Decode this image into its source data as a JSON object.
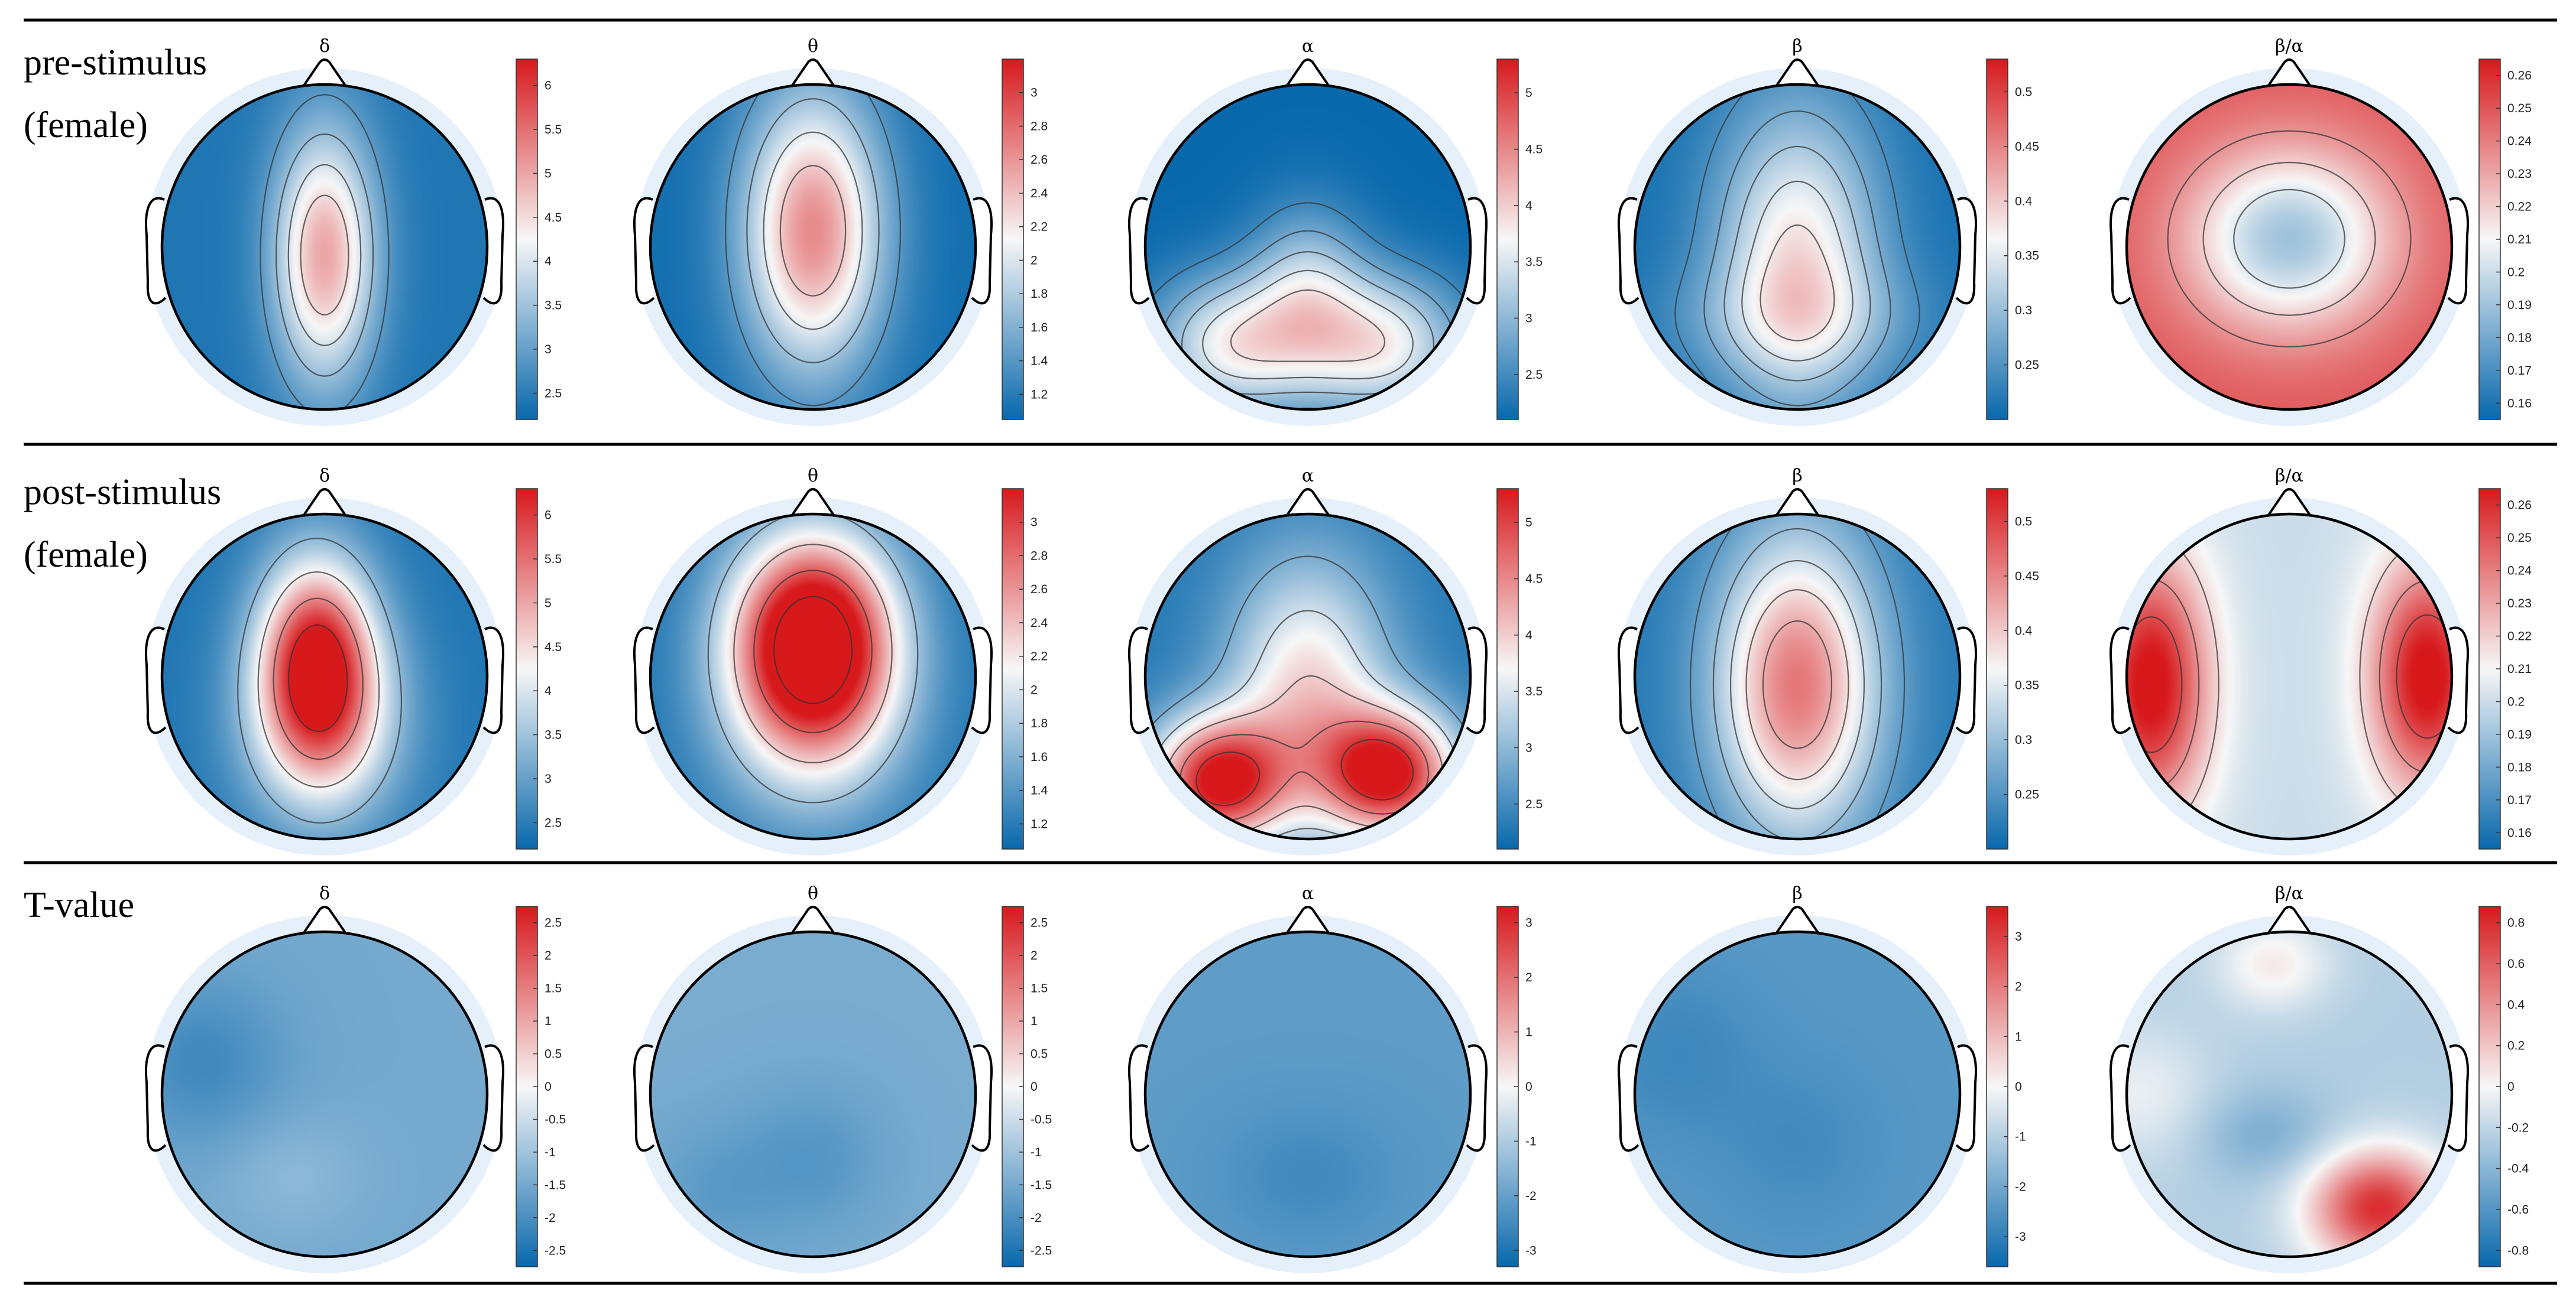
{
  "chart_data": {
    "type": "heatmap",
    "title": "",
    "band_labels": [
      "δ",
      "θ",
      "α",
      "β",
      "β/α"
    ],
    "colormap": {
      "low": "#0868ac",
      "mid": "#f7f7f7",
      "high": "#d7191c"
    },
    "rows": [
      {
        "label": "pre-stimulus",
        "sublabel": "(female)",
        "maps": [
          {
            "band": "δ",
            "range": [
              2.2,
              6.3
            ],
            "ticks": [
              "6",
              "5.5",
              "5",
              "4.5",
              "4",
              "3.5",
              "3",
              "2.5"
            ],
            "tick_values": [
              6,
              5.5,
              5,
              4.5,
              4,
              3.5,
              3,
              2.5
            ],
            "base": 2.4,
            "blobs": [
              {
                "x": 0,
                "y": 0.05,
                "sx": 0.22,
                "sy": 0.55,
                "a": 2.6
              }
            ],
            "contours": 4
          },
          {
            "band": "θ",
            "range": [
              1.05,
              3.2
            ],
            "ticks": [
              "3",
              "2.8",
              "2.6",
              "2.4",
              "2.2",
              "2",
              "1.8",
              "1.6",
              "1.4",
              "1.2"
            ],
            "tick_values": [
              3,
              2.8,
              2.6,
              2.4,
              2.2,
              2,
              1.8,
              1.6,
              1.4,
              1.2
            ],
            "base": 1.1,
            "blobs": [
              {
                "x": 0,
                "y": -0.1,
                "sx": 0.3,
                "sy": 0.6,
                "a": 1.55
              }
            ],
            "contours": 4
          },
          {
            "band": "α",
            "range": [
              2.1,
              5.3
            ],
            "ticks": [
              "5",
              "4.5",
              "4",
              "3.5",
              "3",
              "2.5"
            ],
            "tick_values": [
              5,
              4.5,
              4,
              3.5,
              3,
              2.5
            ],
            "base": 2.1,
            "blobs": [
              {
                "x": -0.45,
                "y": 0.6,
                "sx": 0.35,
                "sy": 0.3,
                "a": 1.6
              },
              {
                "x": 0.45,
                "y": 0.6,
                "sx": 0.35,
                "sy": 0.3,
                "a": 1.6
              },
              {
                "x": 0,
                "y": 0.25,
                "sx": 0.25,
                "sy": 0.35,
                "a": 1.0
              }
            ],
            "contours": 5
          },
          {
            "band": "β",
            "range": [
              0.2,
              0.53
            ],
            "ticks": [
              "0.5",
              "0.45",
              "0.4",
              "0.35",
              "0.3",
              "0.25"
            ],
            "tick_values": [
              0.5,
              0.45,
              0.4,
              0.35,
              0.3,
              0.25
            ],
            "base": 0.21,
            "blobs": [
              {
                "x": 0,
                "y": 0.05,
                "sx": 0.35,
                "sy": 0.65,
                "a": 0.17
              },
              {
                "x": 0,
                "y": 0.45,
                "sx": 0.55,
                "sy": 0.25,
                "a": 0.05
              }
            ],
            "contours": 5
          },
          {
            "band": "β/α",
            "range": [
              0.155,
              0.265
            ],
            "ticks": [
              "0.26",
              "0.25",
              "0.24",
              "0.23",
              "0.22",
              "0.21",
              "0.2",
              "0.19",
              "0.18",
              "0.17",
              "0.16"
            ],
            "tick_values": [
              0.26,
              0.25,
              0.24,
              0.23,
              0.22,
              0.21,
              0.2,
              0.19,
              0.18,
              0.17,
              0.16
            ],
            "base": 0.25,
            "blobs": [
              {
                "x": 0,
                "y": -0.05,
                "sx": 0.45,
                "sy": 0.4,
                "a": -0.06
              }
            ],
            "contours": 3
          }
        ]
      },
      {
        "label": "post-stimulus",
        "sublabel": "(female)",
        "maps": [
          {
            "band": "δ",
            "range": [
              2.2,
              6.3
            ],
            "ticks": [
              "6",
              "5.5",
              "5",
              "4.5",
              "4",
              "3.5",
              "3",
              "2.5"
            ],
            "tick_values": [
              6,
              5.5,
              5,
              4.5,
              4,
              3.5,
              3,
              2.5
            ],
            "base": 2.4,
            "blobs": [
              {
                "x": -0.05,
                "y": -0.1,
                "sx": 0.25,
                "sy": 0.45,
                "a": 3.6
              },
              {
                "x": 0,
                "y": 0.3,
                "sx": 0.35,
                "sy": 0.45,
                "a": 1.6
              }
            ],
            "contours": 4
          },
          {
            "band": "θ",
            "range": [
              1.05,
              3.2
            ],
            "ticks": [
              "3",
              "2.8",
              "2.6",
              "2.4",
              "2.2",
              "2",
              "1.8",
              "1.6",
              "1.4",
              "1.2"
            ],
            "tick_values": [
              3,
              2.8,
              2.6,
              2.4,
              2.2,
              2,
              1.8,
              1.6,
              1.4,
              1.2
            ],
            "base": 1.15,
            "blobs": [
              {
                "x": 0,
                "y": -0.25,
                "sx": 0.35,
                "sy": 0.45,
                "a": 2.3
              },
              {
                "x": 0,
                "y": 0.2,
                "sx": 0.4,
                "sy": 0.5,
                "a": 0.8
              }
            ],
            "contours": 4
          },
          {
            "band": "α",
            "range": [
              2.1,
              5.3
            ],
            "ticks": [
              "5",
              "4.5",
              "4",
              "3.5",
              "3",
              "2.5"
            ],
            "tick_values": [
              5,
              4.5,
              4,
              3.5,
              3,
              2.5
            ],
            "base": 2.3,
            "blobs": [
              {
                "x": -0.55,
                "y": 0.65,
                "sx": 0.3,
                "sy": 0.28,
                "a": 3.0
              },
              {
                "x": 0.5,
                "y": 0.6,
                "sx": 0.3,
                "sy": 0.28,
                "a": 3.0
              },
              {
                "x": 0,
                "y": 0.05,
                "sx": 0.35,
                "sy": 0.55,
                "a": 1.6
              }
            ],
            "contours": 5
          },
          {
            "band": "β",
            "range": [
              0.2,
              0.53
            ],
            "ticks": [
              "0.5",
              "0.45",
              "0.4",
              "0.35",
              "0.3",
              "0.25"
            ],
            "tick_values": [
              0.5,
              0.45,
              0.4,
              0.35,
              0.3,
              0.25
            ],
            "base": 0.22,
            "blobs": [
              {
                "x": 0,
                "y": 0.05,
                "sx": 0.35,
                "sy": 0.65,
                "a": 0.24
              }
            ],
            "contours": 5
          },
          {
            "band": "β/α",
            "range": [
              0.155,
              0.265
            ],
            "ticks": [
              "0.26",
              "0.25",
              "0.24",
              "0.23",
              "0.22",
              "0.21",
              "0.2",
              "0.19",
              "0.18",
              "0.17",
              "0.16"
            ],
            "tick_values": [
              0.26,
              0.25,
              0.24,
              0.23,
              0.22,
              0.21,
              0.2,
              0.19,
              0.18,
              0.17,
              0.16
            ],
            "base": 0.2,
            "blobs": [
              {
                "x": -0.85,
                "y": 0.05,
                "sx": 0.25,
                "sy": 0.55,
                "a": 0.07
              },
              {
                "x": 0.85,
                "y": 0.0,
                "sx": 0.25,
                "sy": 0.5,
                "a": 0.07
              }
            ],
            "contours": 3
          }
        ]
      },
      {
        "label": "T-value",
        "sublabel": "",
        "maps": [
          {
            "band": "δ",
            "range": [
              -2.75,
              2.75
            ],
            "ticks": [
              "2.5",
              "2",
              "1.5",
              "1",
              "0.5",
              "0",
              "-0.5",
              "-1",
              "-1.5",
              "-2",
              "-2.5"
            ],
            "tick_values": [
              2.5,
              2,
              1.5,
              1,
              0.5,
              0,
              -0.5,
              -1,
              -1.5,
              -2,
              -2.5
            ],
            "base": -1.5,
            "blobs": [
              {
                "x": -0.75,
                "y": -0.2,
                "sx": 0.35,
                "sy": 0.35,
                "a": -0.6
              },
              {
                "x": -0.2,
                "y": 0.5,
                "sx": 0.3,
                "sy": 0.25,
                "a": 0.3
              }
            ],
            "contours": 0
          },
          {
            "band": "θ",
            "range": [
              -2.75,
              2.75
            ],
            "ticks": [
              "2.5",
              "2",
              "1.5",
              "1",
              "0.5",
              "0",
              "-0.5",
              "-1",
              "-1.5",
              "-2",
              "-2.5"
            ],
            "tick_values": [
              2.5,
              2,
              1.5,
              1,
              0.5,
              0,
              -0.5,
              -1,
              -1.5,
              -2,
              -2.5
            ],
            "base": -1.45,
            "blobs": [
              {
                "x": 0,
                "y": 0.4,
                "sx": 0.3,
                "sy": 0.3,
                "a": -0.4
              },
              {
                "x": -0.6,
                "y": 0.6,
                "sx": 0.3,
                "sy": 0.3,
                "a": -0.3
              }
            ],
            "contours": 0
          },
          {
            "band": "α",
            "range": [
              -3.3,
              3.3
            ],
            "ticks": [
              "3",
              "2",
              "1",
              "0",
              "-1",
              "-2",
              "-3"
            ],
            "tick_values": [
              3,
              2,
              1,
              0,
              -1,
              -2,
              -3
            ],
            "base": -2.1,
            "blobs": [
              {
                "x": 0,
                "y": 0.5,
                "sx": 0.4,
                "sy": 0.3,
                "a": -0.4
              }
            ],
            "contours": 0
          },
          {
            "band": "β",
            "range": [
              -3.6,
              3.6
            ],
            "ticks": [
              "3",
              "2",
              "1",
              "0",
              "-1",
              "-2",
              "-3"
            ],
            "tick_values": [
              3,
              2,
              1,
              0,
              -1,
              -2,
              -3
            ],
            "base": -2.4,
            "blobs": [
              {
                "x": -0.75,
                "y": -0.25,
                "sx": 0.35,
                "sy": 0.35,
                "a": -0.4
              },
              {
                "x": 0,
                "y": 0.3,
                "sx": 0.35,
                "sy": 0.35,
                "a": -0.3
              }
            ],
            "contours": 0
          },
          {
            "band": "β/α",
            "range": [
              -0.88,
              0.88
            ],
            "ticks": [
              "0.8",
              "0.6",
              "0.4",
              "0.2",
              "0",
              "-0.2",
              "-0.4",
              "-0.6",
              "-0.8"
            ],
            "tick_values": [
              0.8,
              0.6,
              0.4,
              0.2,
              0,
              -0.2,
              -0.4,
              -0.6,
              -0.8
            ],
            "base": -0.25,
            "blobs": [
              {
                "x": 0.55,
                "y": 0.7,
                "sx": 0.3,
                "sy": 0.25,
                "a": 1.05
              },
              {
                "x": -0.1,
                "y": -0.8,
                "sx": 0.25,
                "sy": 0.2,
                "a": 0.3
              },
              {
                "x": -0.15,
                "y": 0.25,
                "sx": 0.3,
                "sy": 0.2,
                "a": -0.2
              },
              {
                "x": -0.9,
                "y": 0.0,
                "sx": 0.3,
                "sy": 0.3,
                "a": 0.2
              }
            ],
            "contours": 0
          }
        ]
      }
    ]
  }
}
